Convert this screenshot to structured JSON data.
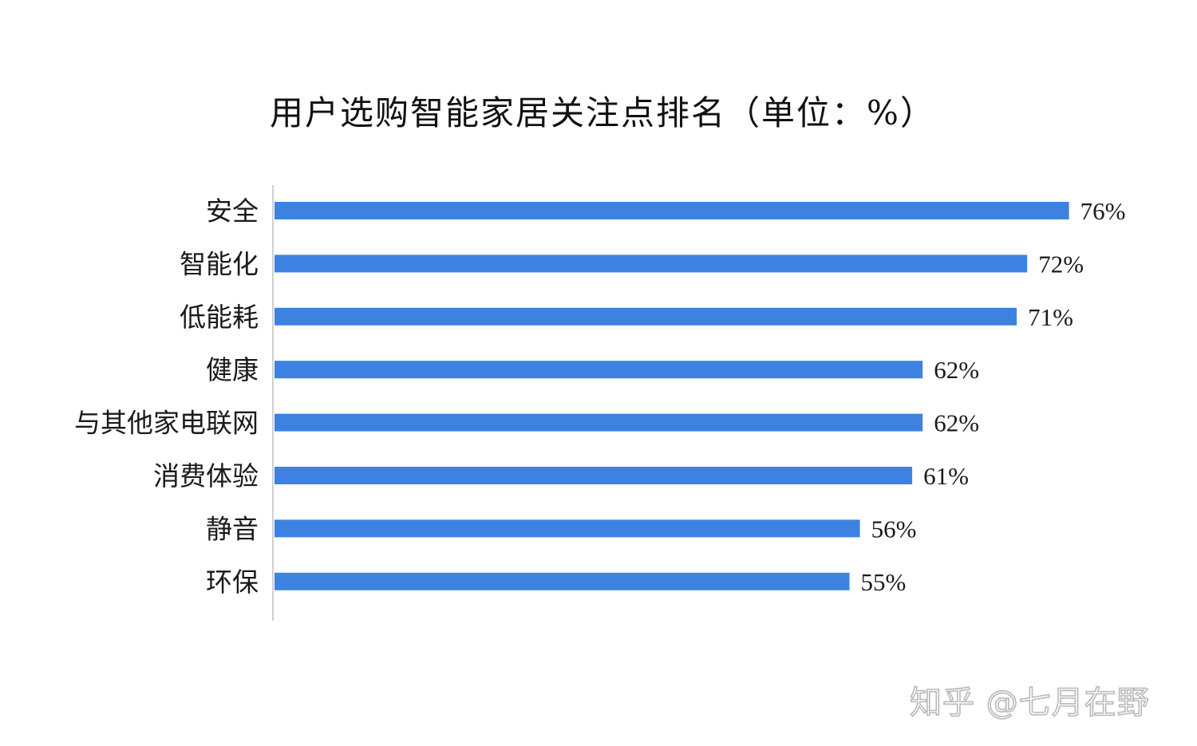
{
  "chart_data": {
    "type": "bar",
    "orientation": "horizontal",
    "title": "用户选购智能家居关注点排名（单位：%）",
    "categories": [
      "安全",
      "智能化",
      "低能耗",
      "健康",
      "与其他家电联网",
      "消费体验",
      "静音",
      "环保"
    ],
    "values": [
      76,
      72,
      71,
      62,
      62,
      61,
      56,
      55
    ],
    "data_labels": [
      "76%",
      "72%",
      "71%",
      "62%",
      "62%",
      "61%",
      "56%",
      "55%"
    ],
    "unit": "%",
    "xlim": [
      0,
      76
    ],
    "grid": false,
    "legend": "none",
    "bar_color": "#3d82e0"
  },
  "watermark": "知乎 @七月在野"
}
